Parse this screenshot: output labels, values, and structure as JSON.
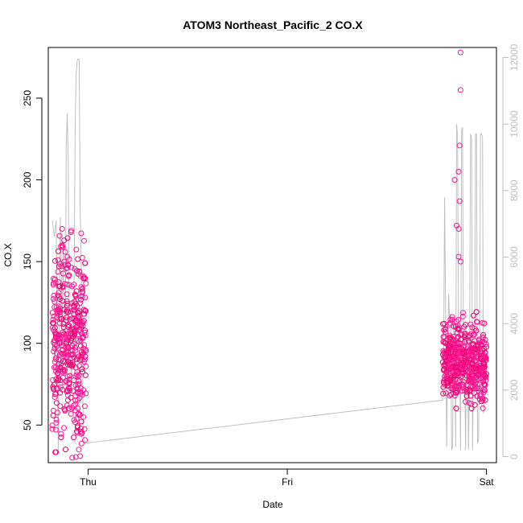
{
  "chart_data": {
    "type": "scatter",
    "title": "ATOM3 Northeast_Pacific_2 CO.X",
    "xlabel": "Date",
    "ylabel": "CO.X",
    "x_tick_labels": [
      "Thu",
      "Fri",
      "Sat"
    ],
    "y_ticks": [
      50,
      100,
      150,
      200,
      250
    ],
    "y_tick_labels": [
      "50",
      "100",
      "150",
      "200",
      "250"
    ],
    "y2_ticks": [
      0,
      2000,
      4000,
      6000,
      8000,
      10000,
      12000
    ],
    "y2_tick_labels": [
      "0",
      "2000",
      "4000",
      "6000",
      "8000",
      "10000",
      "12000"
    ],
    "xlim": [
      -0.2,
      2.05
    ],
    "ylim": [
      27,
      281
    ],
    "y2lim": [
      -180,
      12300
    ],
    "grid": false,
    "legend": "none",
    "colors": {
      "points": "#ff1493",
      "points_dark": "#e8006a",
      "line": "#c0c0c0",
      "right_axis": "#bebebe",
      "axis": "#000000"
    },
    "series": [
      {
        "kind": "points",
        "clusters": [
          {
            "x_start": -0.18,
            "x_end": -0.01,
            "y_low": 30,
            "y_high": 170,
            "y_center": 100,
            "count": 420
          },
          {
            "x_start": 1.78,
            "x_end": 2.0,
            "y_low": 60,
            "y_high": 120,
            "y_center": 88,
            "count": 520
          }
        ],
        "outliers": [
          {
            "x": 1.87,
            "y": 278
          },
          {
            "x": 1.87,
            "y": 255
          },
          {
            "x": 1.865,
            "y": 221
          },
          {
            "x": 1.86,
            "y": 205
          },
          {
            "x": 1.84,
            "y": 200
          },
          {
            "x": 1.865,
            "y": 187
          },
          {
            "x": 1.85,
            "y": 172
          },
          {
            "x": 1.86,
            "y": 170
          },
          {
            "x": 1.86,
            "y": 153
          },
          {
            "x": 1.87,
            "y": 150
          },
          {
            "x": -0.13,
            "y": 170
          },
          {
            "x": -0.13,
            "y": 160
          },
          {
            "x": -0.12,
            "y": 150
          },
          {
            "x": -0.08,
            "y": 30
          },
          {
            "x": -0.04,
            "y": 31
          }
        ]
      },
      {
        "kind": "line",
        "axis": "right",
        "points": [
          [
            -0.18,
            7100
          ],
          [
            -0.17,
            6600
          ],
          [
            -0.16,
            7100
          ],
          [
            -0.155,
            3600
          ],
          [
            -0.15,
            200
          ],
          [
            -0.145,
            3600
          ],
          [
            -0.14,
            7200
          ],
          [
            -0.13,
            4200
          ],
          [
            -0.125,
            6500
          ],
          [
            -0.12,
            3900
          ],
          [
            -0.115,
            3000
          ],
          [
            -0.11,
            9300
          ],
          [
            -0.105,
            10300
          ],
          [
            -0.1,
            9000
          ],
          [
            -0.095,
            3600
          ],
          [
            -0.09,
            3800
          ],
          [
            -0.085,
            2100
          ],
          [
            -0.08,
            2900
          ],
          [
            -0.075,
            3200
          ],
          [
            -0.07,
            5500
          ],
          [
            -0.065,
            9900
          ],
          [
            -0.06,
            11500
          ],
          [
            -0.055,
            11900
          ],
          [
            -0.05,
            11950
          ],
          [
            -0.045,
            11950
          ],
          [
            -0.04,
            7500
          ],
          [
            -0.035,
            6000
          ],
          [
            -0.03,
            4000
          ],
          [
            -0.025,
            1200
          ],
          [
            -0.02,
            400
          ],
          [
            1.78,
            1700
          ],
          [
            1.785,
            3300
          ],
          [
            1.79,
            7800
          ],
          [
            1.795,
            4200
          ],
          [
            1.8,
            300
          ],
          [
            1.805,
            3000
          ],
          [
            1.81,
            4900
          ],
          [
            1.815,
            4000
          ],
          [
            1.82,
            4300
          ],
          [
            1.825,
            200
          ],
          [
            1.83,
            300
          ],
          [
            1.835,
            4100
          ],
          [
            1.84,
            3900
          ],
          [
            1.845,
            300
          ],
          [
            1.85,
            10000
          ],
          [
            1.855,
            9600
          ],
          [
            1.86,
            2900
          ],
          [
            1.865,
            3200
          ],
          [
            1.87,
            200
          ],
          [
            1.875,
            9800
          ],
          [
            1.88,
            9900
          ],
          [
            1.885,
            2100
          ],
          [
            1.89,
            2900
          ],
          [
            1.895,
            200
          ],
          [
            1.9,
            3400
          ],
          [
            1.905,
            3100
          ],
          [
            1.91,
            200
          ],
          [
            1.915,
            3000
          ],
          [
            1.92,
            9700
          ],
          [
            1.925,
            9600
          ],
          [
            1.93,
            200
          ],
          [
            1.935,
            2700
          ],
          [
            1.94,
            1800
          ],
          [
            1.945,
            9700
          ],
          [
            1.95,
            9700
          ],
          [
            1.955,
            400
          ],
          [
            1.96,
            500
          ],
          [
            1.965,
            3400
          ],
          [
            1.97,
            9700
          ],
          [
            1.975,
            9700
          ],
          [
            1.98,
            9600
          ],
          [
            1.985,
            1300
          ],
          [
            1.99,
            1700
          ],
          [
            1.995,
            1900
          ]
        ]
      }
    ]
  }
}
